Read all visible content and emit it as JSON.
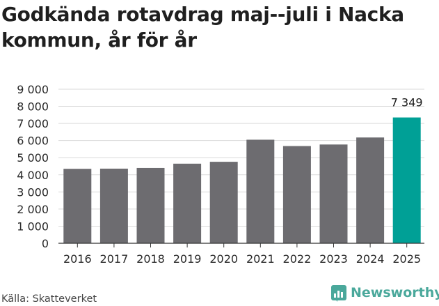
{
  "chart_data": {
    "type": "bar",
    "title": "Godkända rotavdrag maj--juli i Nacka kommun, år för år",
    "categories": [
      "2016",
      "2017",
      "2018",
      "2019",
      "2020",
      "2021",
      "2022",
      "2023",
      "2024",
      "2025"
    ],
    "values": [
      4350,
      4360,
      4400,
      4650,
      4760,
      6050,
      5680,
      5770,
      6180,
      7349
    ],
    "highlight_index": 9,
    "highlight_label": "7 349",
    "ylim": [
      0,
      9000
    ],
    "yticks": [
      0,
      1000,
      2000,
      3000,
      4000,
      5000,
      6000,
      7000,
      8000,
      9000
    ],
    "ytick_labels": [
      "0",
      "1 000",
      "2 000",
      "3 000",
      "4 000",
      "5 000",
      "6 000",
      "7 000",
      "8 000",
      "9 000"
    ],
    "grid": true,
    "colors": {
      "bar": "#6d6c70",
      "highlight": "#00a096",
      "grid": "#d9d9d9"
    }
  },
  "footer": {
    "source": "Källa: Skatteverket",
    "brand": "Newsworthy",
    "brand_icon": "newsworthy-logo-icon"
  }
}
